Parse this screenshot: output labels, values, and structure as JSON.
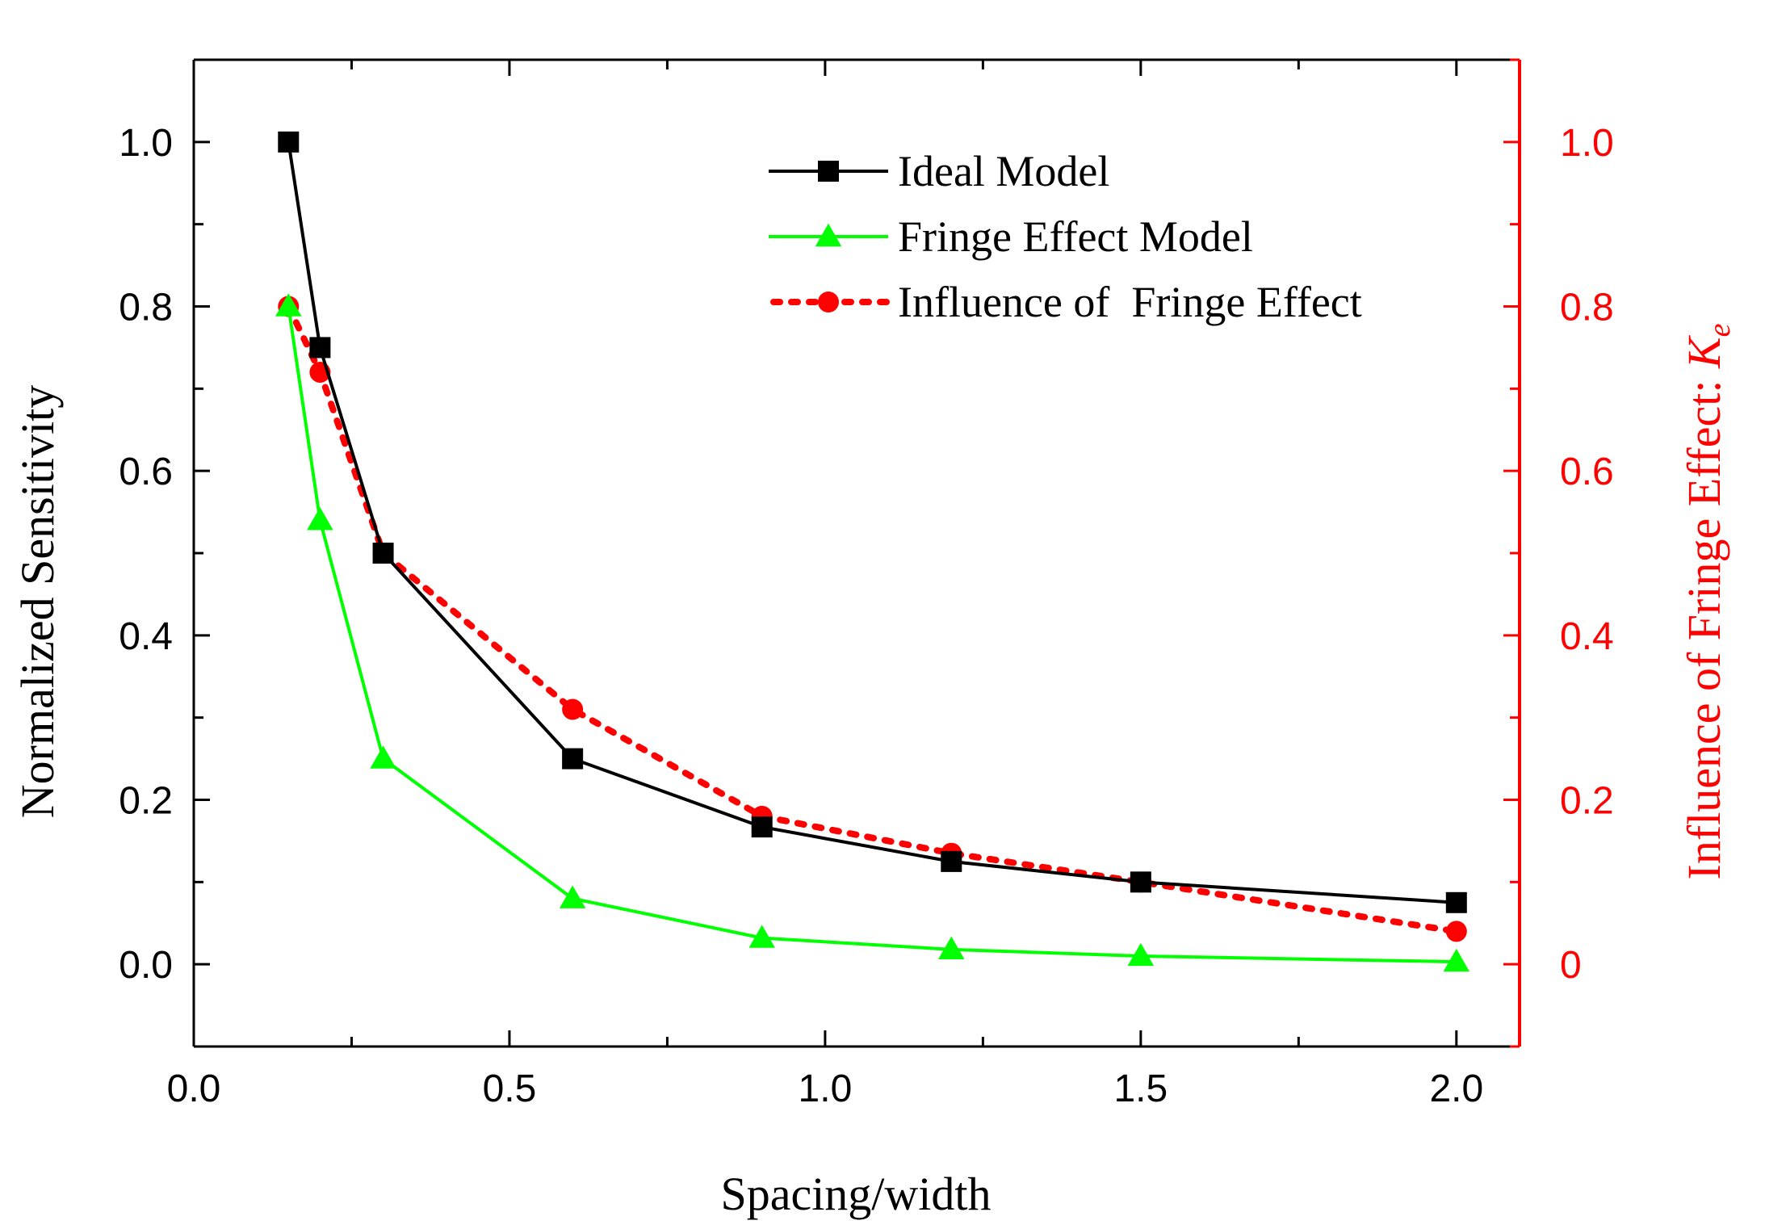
{
  "chart_data": {
    "type": "line",
    "xlabel": "Spacing/width",
    "ylabel_left": "Normalized Sensitivity",
    "ylabel_right": "Influence of Fringe Effect: ",
    "ylabel_right_symbol": "K",
    "ylabel_right_subscript": "e",
    "xlim": [
      0.0,
      2.1
    ],
    "ylim_left": [
      -0.1,
      1.1
    ],
    "ylim_right": [
      -0.1,
      1.1
    ],
    "x_ticks": [
      {
        "value": 0.0,
        "label": "0.0"
      },
      {
        "value": 0.5,
        "label": "0.5"
      },
      {
        "value": 1.0,
        "label": "1.0"
      },
      {
        "value": 1.5,
        "label": "1.5"
      },
      {
        "value": 2.0,
        "label": "2.0"
      }
    ],
    "y_left_ticks": [
      {
        "value": 0.0,
        "label": "0.0"
      },
      {
        "value": 0.2,
        "label": "0.2"
      },
      {
        "value": 0.4,
        "label": "0.4"
      },
      {
        "value": 0.6,
        "label": "0.6"
      },
      {
        "value": 0.8,
        "label": "0.8"
      },
      {
        "value": 1.0,
        "label": "1.0"
      }
    ],
    "y_right_ticks": [
      {
        "value": 0.0,
        "label": "0"
      },
      {
        "value": 0.2,
        "label": "0.2"
      },
      {
        "value": 0.4,
        "label": "0.4"
      },
      {
        "value": 0.6,
        "label": "0.6"
      },
      {
        "value": 0.8,
        "label": "0.8"
      },
      {
        "value": 1.0,
        "label": "1.0"
      }
    ],
    "legend_position": "top-right",
    "series": [
      {
        "name": "Ideal Model",
        "axis": "left",
        "color": "#000000",
        "marker": "square",
        "line_style": "solid",
        "x": [
          0.15,
          0.2,
          0.3,
          0.6,
          0.9,
          1.2,
          1.5,
          2.0
        ],
        "values": [
          1.0,
          0.75,
          0.5,
          0.25,
          0.167,
          0.125,
          0.1,
          0.075
        ]
      },
      {
        "name": "Fringe Effect Model",
        "axis": "left",
        "color": "#00ff00",
        "marker": "triangle",
        "line_style": "solid",
        "x": [
          0.15,
          0.2,
          0.3,
          0.6,
          0.9,
          1.2,
          1.5,
          2.0
        ],
        "values": [
          0.8,
          0.54,
          0.25,
          0.08,
          0.032,
          0.018,
          0.01,
          0.003
        ]
      },
      {
        "name": "Influence of  Fringe Effect",
        "axis": "right",
        "color": "#ff0000",
        "marker": "circle",
        "line_style": "dotted",
        "x": [
          0.15,
          0.2,
          0.3,
          0.6,
          0.9,
          1.2,
          1.5,
          2.0
        ],
        "values": [
          0.8,
          0.72,
          0.5,
          0.31,
          0.18,
          0.135,
          0.1,
          0.04
        ]
      }
    ]
  }
}
